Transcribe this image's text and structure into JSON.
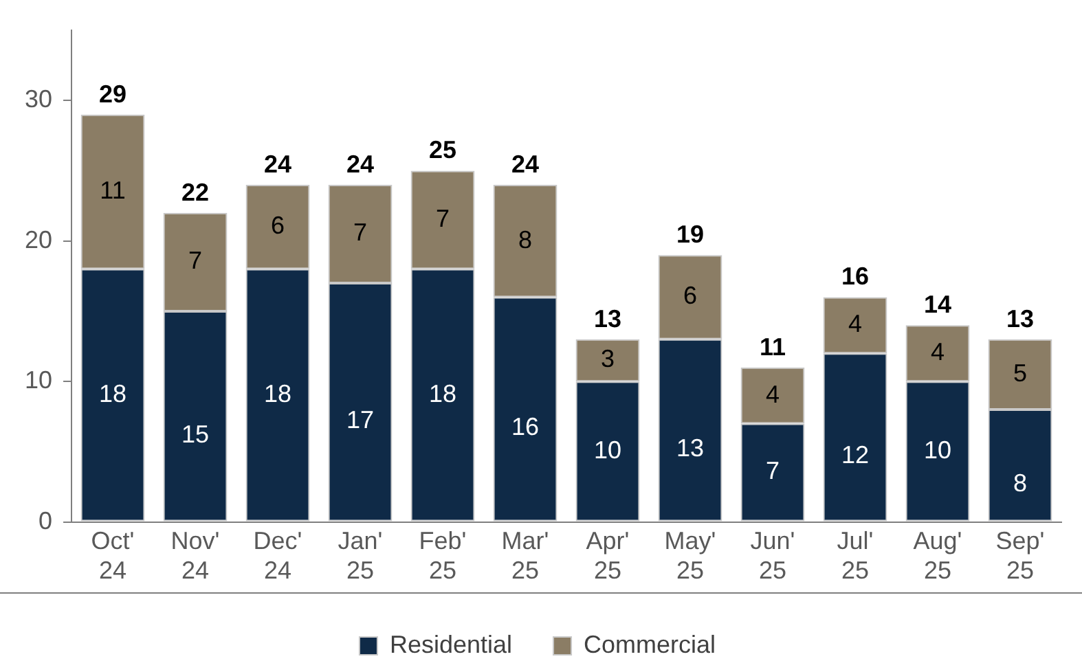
{
  "chart_data": {
    "type": "bar",
    "stacked": true,
    "categories": [
      "Oct' 24",
      "Nov' 24",
      "Dec' 24",
      "Jan' 25",
      "Feb' 25",
      "Mar' 25",
      "Apr' 25",
      "May' 25",
      "Jun' 25",
      "Jul' 25",
      "Aug' 25",
      "Sep' 25"
    ],
    "series": [
      {
        "name": "Residential",
        "color": "#0f2a47",
        "values": [
          18,
          15,
          18,
          17,
          18,
          16,
          10,
          13,
          7,
          12,
          10,
          8
        ]
      },
      {
        "name": "Commercial",
        "color": "#8b7d65",
        "values": [
          11,
          7,
          6,
          7,
          7,
          8,
          3,
          6,
          4,
          4,
          4,
          5
        ]
      }
    ],
    "totals": [
      "29",
      "22",
      "24",
      "24",
      "25",
      "24",
      "13",
      "19",
      "11",
      "16",
      "14",
      "13"
    ],
    "data_labels": true,
    "ylim": [
      0,
      35
    ],
    "yticks": [
      0,
      10,
      20,
      30
    ],
    "grid": false,
    "legend": "bottom"
  }
}
